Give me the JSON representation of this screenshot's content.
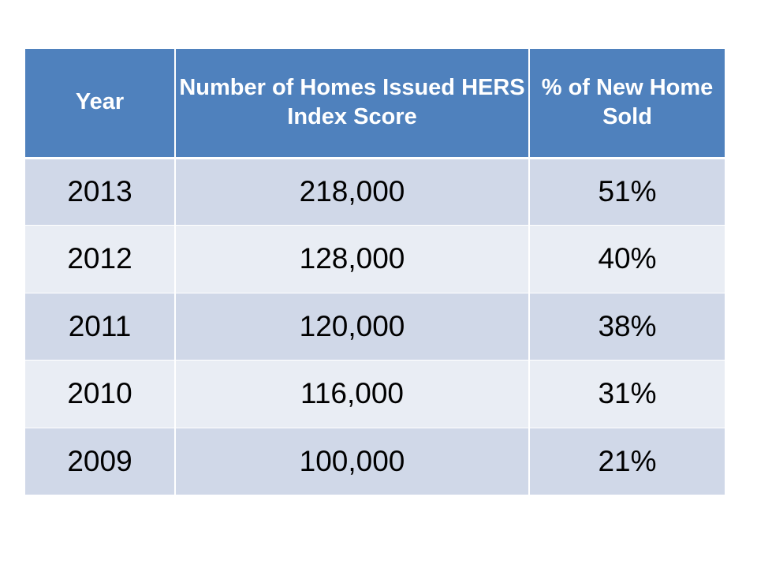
{
  "table": {
    "headers": [
      "Year",
      "Number of Homes Issued HERS Index Score",
      "% of New Home Sold"
    ],
    "rows": [
      [
        "2013",
        "218,000",
        "51%"
      ],
      [
        "2012",
        "128,000",
        "40%"
      ],
      [
        "2011",
        "120,000",
        "38%"
      ],
      [
        "2010",
        "116,000",
        "31%"
      ],
      [
        "2009",
        "100,000",
        "21%"
      ]
    ]
  },
  "colors": {
    "header_bg": "#4f81bd",
    "header_text": "#ffffff",
    "row_band_dark": "#d0d8e8",
    "row_band_light": "#e9edf4"
  }
}
